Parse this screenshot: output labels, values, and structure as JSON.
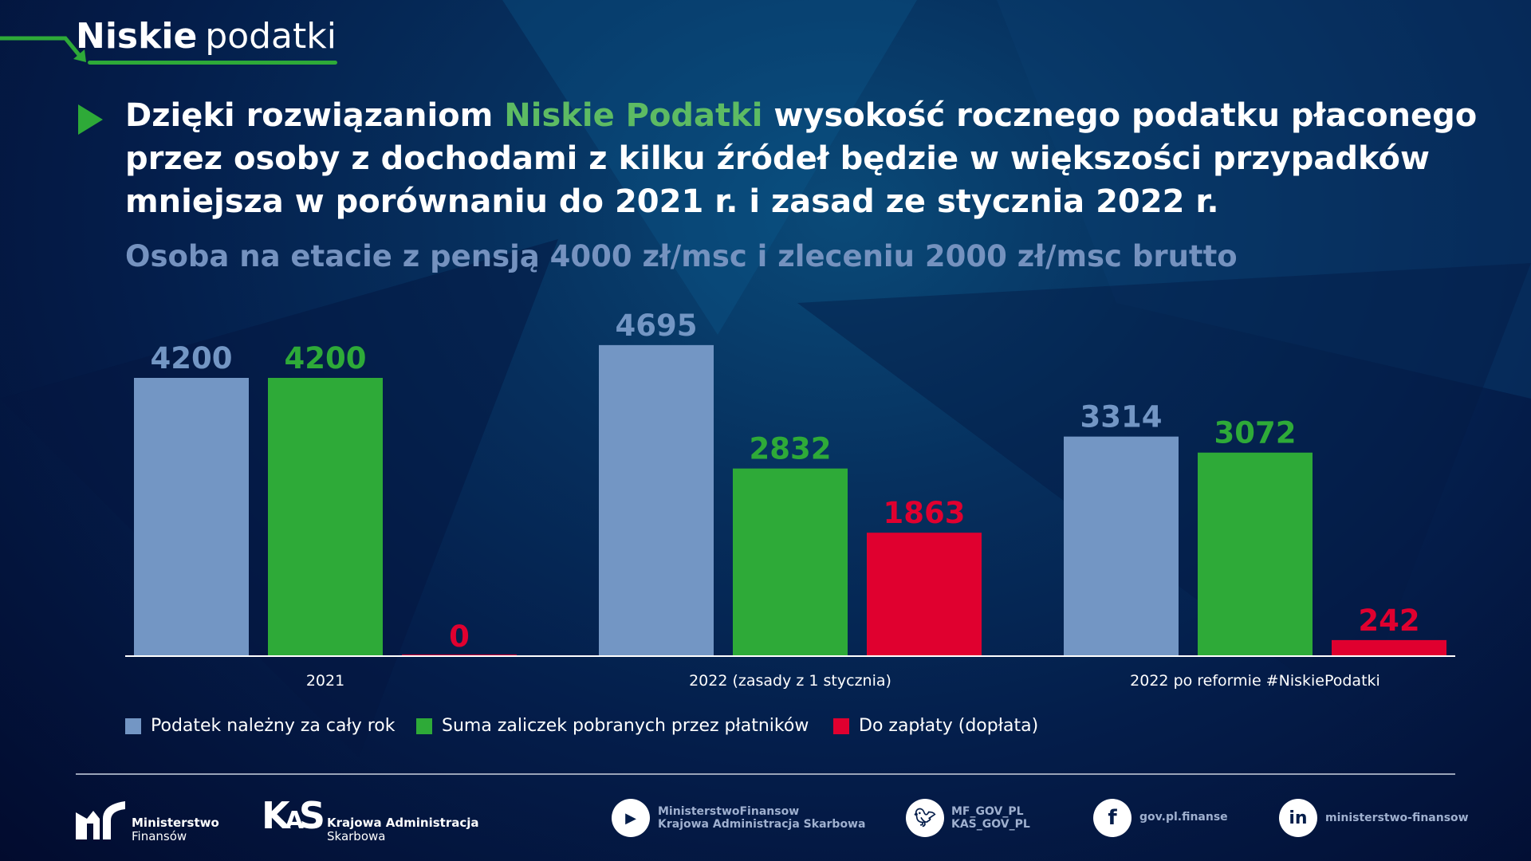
{
  "brand": {
    "bold": "Niskie",
    "light": "podatki"
  },
  "heading": {
    "before": "Dzięki rozwiązaniom ",
    "highlight": "Niskie Podatki",
    "after": " wysokość rocznego podatku płaconego przez osoby z dochodami z kilku źródeł będzie w większości przypadków mniejsza w porównaniu do 2021 r. i zasad ze stycznia 2022 r."
  },
  "subtitle": "Osoba na etacie z pensją 4000 zł/msc i zleceniu 2000 zł/msc brutto",
  "colors": {
    "accent": "#2eaa38",
    "blue": "#7396c4",
    "green": "#2eaa38",
    "red": "#e0002f"
  },
  "chart_data": {
    "type": "bar",
    "categories": [
      "2021",
      "2022 (zasady z 1 stycznia)",
      "2022 po reformie #NiskiePodatki"
    ],
    "series": [
      {
        "name": "Podatek należny za cały rok",
        "color": "#7396c4",
        "values": [
          4200,
          4695,
          3314
        ]
      },
      {
        "name": "Suma zaliczek pobranych przez płatników",
        "color": "#2eaa38",
        "values": [
          4200,
          2832,
          3072
        ]
      },
      {
        "name": "Do zapłaty (dopłata)",
        "color": "#e0002f",
        "values": [
          0,
          1863,
          242
        ]
      }
    ],
    "ylim": [
      0,
      4695
    ],
    "grid": false,
    "legend_position": "bottom-left",
    "data_labels": true
  },
  "footer": {
    "mf": {
      "line1": "Ministerstwo",
      "line2": "Finansów"
    },
    "kas": {
      "line1": "Krajowa Administracja",
      "line2": "Skarbowa",
      "mark": "KAS"
    },
    "youtube": {
      "line1": "MinisterstwoFinansow",
      "line2": "Krajowa Administracja Skarbowa"
    },
    "twitter": {
      "line1": "MF_GOV_PL",
      "line2": "KAS_GOV_PL"
    },
    "facebook": {
      "line1": "gov.pl.finanse"
    },
    "linkedin": {
      "line1": "ministerstwo-finansow"
    }
  }
}
